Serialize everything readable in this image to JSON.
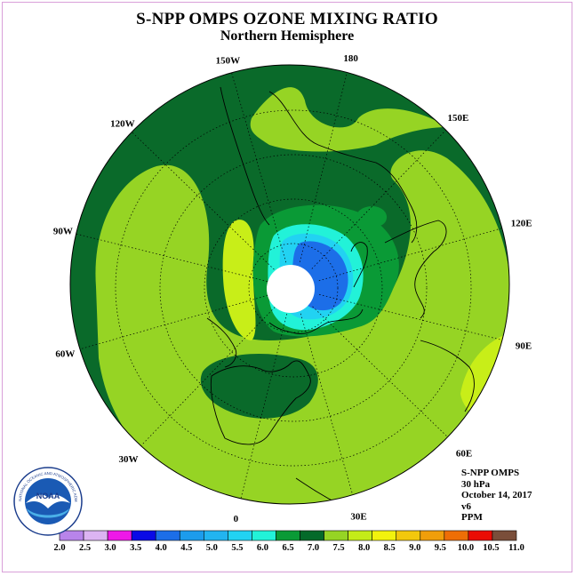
{
  "title": "S-NPP OMPS OZONE MIXING RATIO",
  "subtitle": "Northern Hemisphere",
  "longitude_labels": [
    {
      "lon": 90,
      "text": "90E"
    },
    {
      "lon": 60,
      "text": "60E"
    },
    {
      "lon": 30,
      "text": "30E"
    },
    {
      "lon": 0,
      "text": "0"
    },
    {
      "lon": -30,
      "text": "30W"
    },
    {
      "lon": -60,
      "text": "60W"
    },
    {
      "lon": -90,
      "text": "90W"
    },
    {
      "lon": -120,
      "text": "120W"
    },
    {
      "lon": -150,
      "text": "150W"
    },
    {
      "lon": 180,
      "text": "180"
    },
    {
      "lon": 150,
      "text": "150E"
    },
    {
      "lon": 120,
      "text": "120E"
    }
  ],
  "info": {
    "instrument": "S-NPP OMPS",
    "level": "30 hPa",
    "date": "October 14, 2017",
    "version": "v6",
    "units": "PPM"
  },
  "logo": {
    "text": "NOAA",
    "ring_text": "NATIONAL OCEANIC AND ATMOSPHERIC ADMINISTRATION"
  },
  "colorbar": {
    "ticks": [
      "2.0",
      "2.5",
      "3.0",
      "3.5",
      "4.0",
      "4.5",
      "5.0",
      "5.5",
      "6.0",
      "6.5",
      "7.0",
      "7.5",
      "8.0",
      "8.5",
      "9.0",
      "9.5",
      "10.0",
      "10.5",
      "11.0"
    ],
    "colors": [
      "#b884ea",
      "#dcb4f2",
      "#ee18e8",
      "#0a0ae6",
      "#1c6ee8",
      "#1c9cec",
      "#22b4f0",
      "#22d2f2",
      "#22f2d8",
      "#0a9a36",
      "#046a2a",
      "#96d424",
      "#c4ec18",
      "#f2f20e",
      "#f2c80c",
      "#f09e0a",
      "#ee6e06",
      "#ea0c04",
      "#7a4e3a"
    ]
  },
  "regions": [
    {
      "kind": "disk",
      "color": "#0a6a2a"
    },
    {
      "kind": "lime",
      "color": "#96d424"
    },
    {
      "kind": "yellow",
      "color": "#c8ee18"
    },
    {
      "kind": "green",
      "color": "#0a9a36"
    },
    {
      "kind": "aqua",
      "color": "#22f2d8"
    },
    {
      "kind": "cyan",
      "color": "#22d2f2"
    },
    {
      "kind": "blue",
      "color": "#1c6ee8"
    }
  ]
}
